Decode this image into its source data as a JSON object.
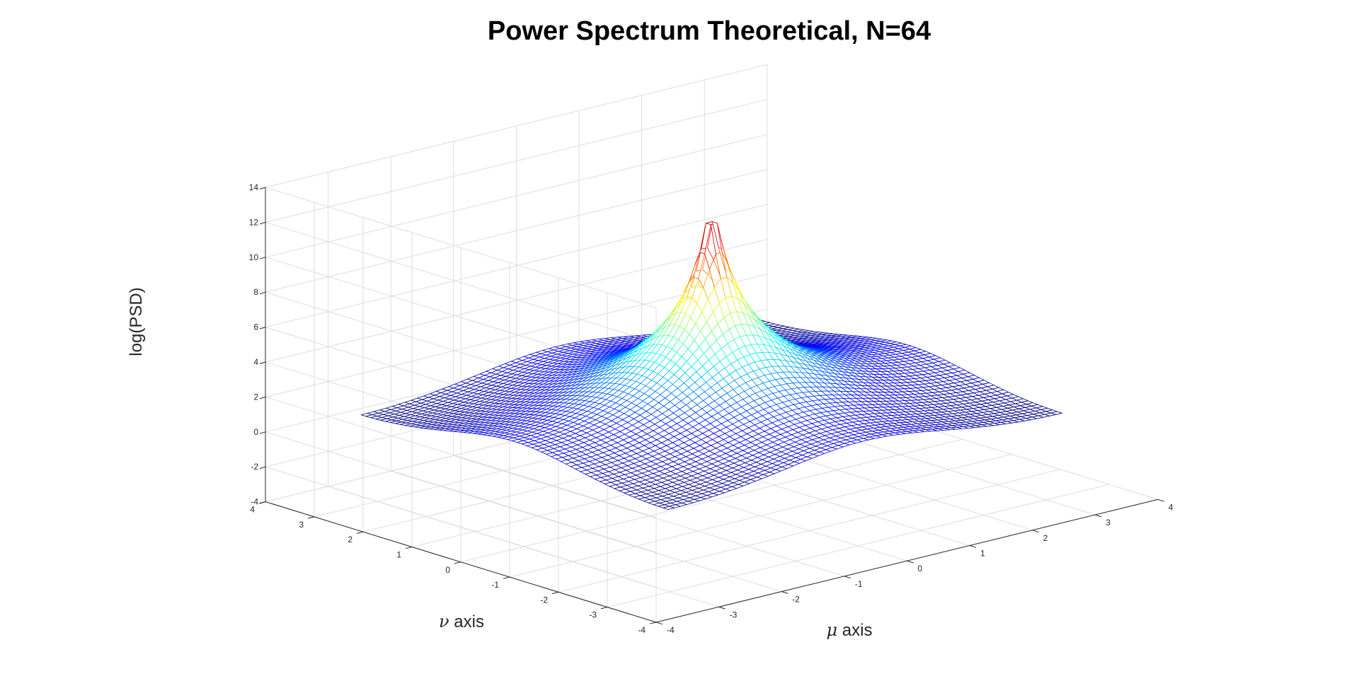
{
  "chart_data": {
    "type": "surface",
    "title": "Power Spectrum Theoretical, N=64",
    "xlabel_symbol": "μ",
    "xlabel_text": " axis",
    "ylabel_symbol": "ν",
    "ylabel_text": " axis",
    "zlabel": "log(PSD)",
    "xlim": [
      -4,
      4
    ],
    "ylim": [
      -4,
      4
    ],
    "zlim": [
      -4,
      14
    ],
    "x_ticks": [
      "-4",
      "-3",
      "-2",
      "-1",
      "0",
      "1",
      "2",
      "3",
      "4"
    ],
    "y_ticks": [
      "-4",
      "-3",
      "-2",
      "-1",
      "0",
      "1",
      "2",
      "3",
      "4"
    ],
    "z_ticks": [
      "-4",
      "-2",
      "0",
      "2",
      "4",
      "6",
      "8",
      "10",
      "12",
      "14"
    ],
    "grid": true,
    "colormap": "jet",
    "grid_points": 64,
    "domain": [
      -3.14159,
      3.14159
    ],
    "peak": {
      "x": 0,
      "y": 0,
      "z": 11.1
    }
  }
}
